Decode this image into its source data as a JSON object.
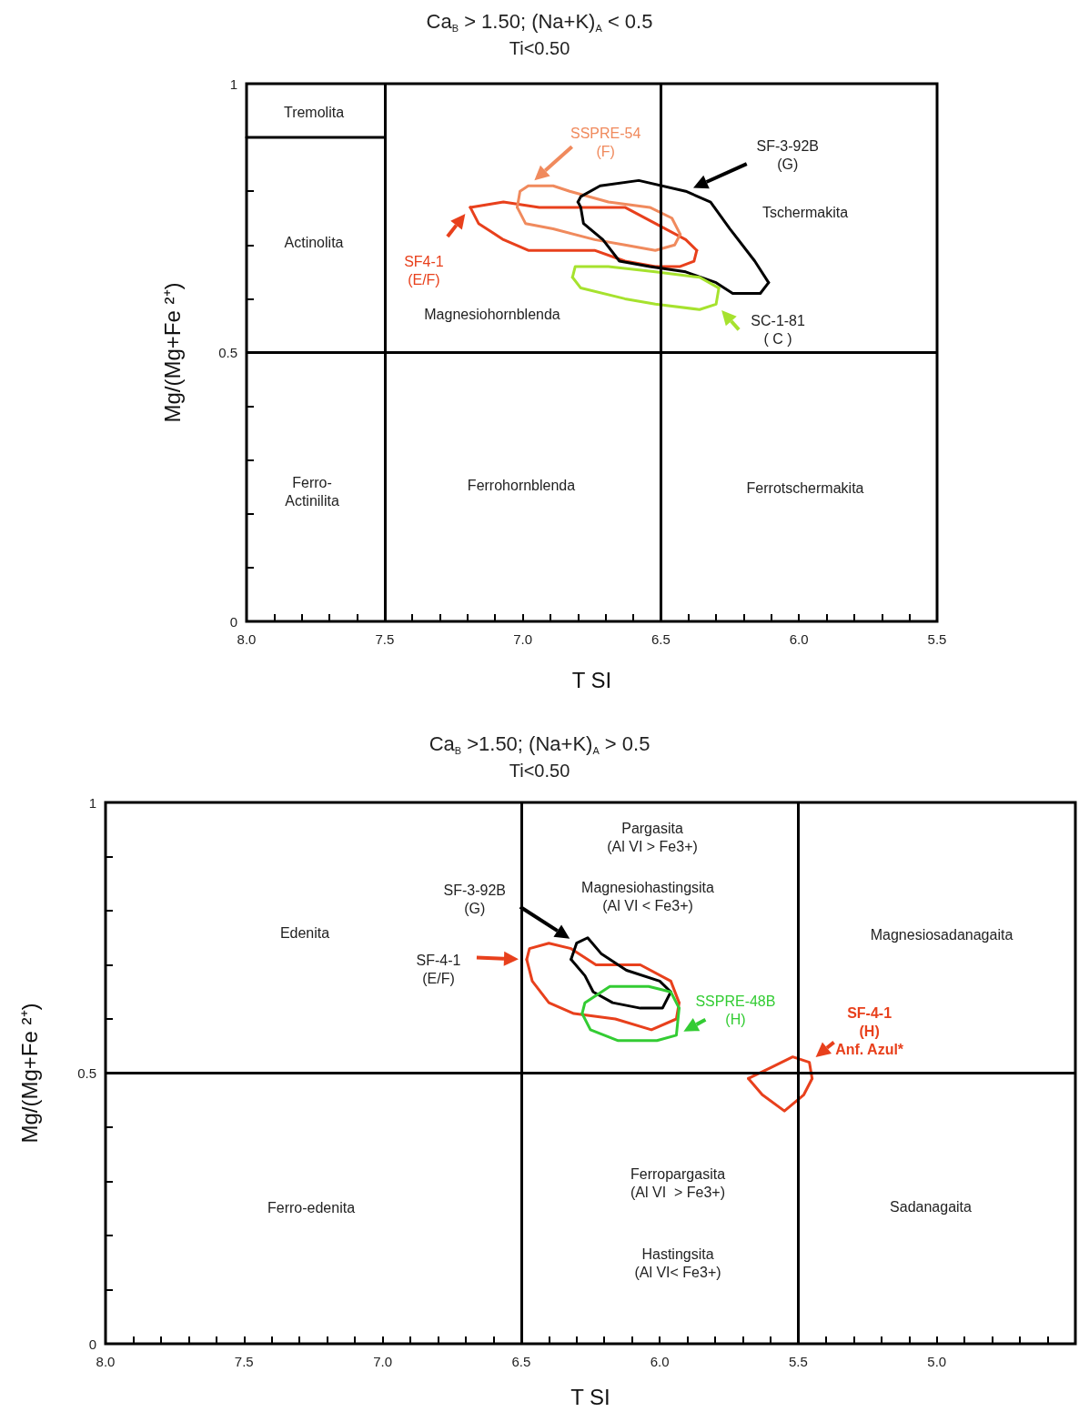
{
  "chart_data": [
    {
      "type": "line",
      "title": "Ca$_{B}$ > 1.50; (Na+K)$_{A}$ < 0.5",
      "subtitle": "Ti<0.50",
      "xlabel": "T SI",
      "ylabel": "Mg/(Mg+Fe ²⁺)",
      "marker": "none",
      "line_style": "solid",
      "grid": false,
      "xlim": [
        8.0,
        5.5
      ],
      "ylim": [
        0,
        1
      ],
      "xticks": [
        {
          "value": 8,
          "label": "8.0"
        },
        {
          "value": 7.9,
          "label": null
        },
        {
          "value": 7.8,
          "label": null
        },
        {
          "value": 7.7,
          "label": null
        },
        {
          "value": 7.6,
          "label": null
        },
        {
          "value": 7.5,
          "label": "7.5"
        },
        {
          "value": 7.4,
          "label": null
        },
        {
          "value": 7.3,
          "label": null
        },
        {
          "value": 7.2,
          "label": null
        },
        {
          "value": 7.1,
          "label": null
        },
        {
          "value": 7,
          "label": "7.0"
        },
        {
          "value": 6.9,
          "label": null
        },
        {
          "value": 6.8,
          "label": null
        },
        {
          "value": 6.7,
          "label": null
        },
        {
          "value": 6.6,
          "label": null
        },
        {
          "value": 6.5,
          "label": "6.5"
        },
        {
          "value": 6.4,
          "label": null
        },
        {
          "value": 6.3,
          "label": null
        },
        {
          "value": 6.2,
          "label": null
        },
        {
          "value": 6.1,
          "label": null
        },
        {
          "value": 6,
          "label": "6.0"
        },
        {
          "value": 5.9,
          "label": null
        },
        {
          "value": 5.8,
          "label": null
        },
        {
          "value": 5.7,
          "label": null
        },
        {
          "value": 5.6,
          "label": null
        },
        {
          "value": 5.5,
          "label": "5.5"
        }
      ],
      "yticks": [
        0,
        {
          "value": 0.1,
          "label": null
        },
        {
          "value": 0.2,
          "label": null
        },
        {
          "value": 0.3,
          "label": null
        },
        {
          "value": 0.4,
          "label": null
        },
        0.5,
        {
          "value": 0.6,
          "label": null
        },
        {
          "value": 0.7,
          "label": null
        },
        {
          "value": 0.8,
          "label": null
        },
        {
          "value": 0.9,
          "label": null
        },
        1
      ],
      "ref_lines": [
        {
          "axis": "x",
          "value": 7.5,
          "color": "#000000"
        },
        {
          "axis": "x",
          "value": 6.5,
          "color": "#000000"
        },
        {
          "axis": "y",
          "value": 0.5,
          "color": "#000000"
        }
      ],
      "series": [
        {
          "color": "#000000",
          "x": [
            8.0,
            7.5
          ],
          "values": [
            0.9,
            0.9
          ]
        },
        {
          "name": "SF4-1\n(E/F)",
          "color": "#e8401c",
          "x": [
            7.19,
            7.07,
            6.94,
            6.79,
            6.63,
            6.52,
            6.41,
            6.37
          ],
          "values": [
            0.77,
            0.78,
            0.77,
            0.77,
            0.77,
            0.74,
            0.71,
            0.69
          ]
        },
        {
          "color": "#e8401c",
          "x": [
            7.19,
            7.16,
            7.07,
            6.98,
            6.85,
            6.74,
            6.63,
            6.52,
            6.43,
            6.38,
            6.37
          ],
          "values": [
            0.77,
            0.74,
            0.71,
            0.69,
            0.69,
            0.69,
            0.67,
            0.66,
            0.66,
            0.67,
            0.69
          ]
        },
        {
          "name": "SSPRE-54\n(F)",
          "color": "#f08a5d",
          "x": [
            7.02,
            7.01,
            6.98,
            6.89,
            6.83,
            6.69,
            6.54,
            6.46,
            6.43
          ],
          "values": [
            0.77,
            0.8,
            0.81,
            0.81,
            0.8,
            0.78,
            0.77,
            0.75,
            0.72
          ]
        },
        {
          "color": "#f08a5d",
          "x": [
            7.02,
            6.99,
            6.89,
            6.74,
            6.63,
            6.52,
            6.45,
            6.43
          ],
          "values": [
            0.77,
            0.74,
            0.73,
            0.71,
            0.7,
            0.69,
            0.7,
            0.72
          ]
        },
        {
          "name": "SF-3-92B\n(G)",
          "color": "#000000",
          "x": [
            6.8,
            6.79,
            6.72,
            6.58,
            6.41,
            6.32,
            6.25,
            6.16,
            6.11
          ],
          "values": [
            0.78,
            0.79,
            0.81,
            0.82,
            0.8,
            0.78,
            0.73,
            0.67,
            0.63
          ]
        },
        {
          "color": "#000000",
          "x": [
            6.8,
            6.79,
            6.78,
            6.71,
            6.65,
            6.54,
            6.41,
            6.3,
            6.24,
            6.14,
            6.11
          ],
          "values": [
            0.78,
            0.77,
            0.74,
            0.71,
            0.67,
            0.66,
            0.65,
            0.63,
            0.61,
            0.61,
            0.63
          ]
        },
        {
          "name": "SC-1-81\n( C )",
          "color": "#a6e22e",
          "x": [
            6.82,
            6.79,
            6.63,
            6.52,
            6.36,
            6.3,
            6.29
          ],
          "values": [
            0.64,
            0.62,
            0.6,
            0.59,
            0.58,
            0.59,
            0.62
          ]
        },
        {
          "color": "#a6e22e",
          "x": [
            6.82,
            6.81,
            6.69,
            6.52,
            6.36,
            6.29
          ],
          "values": [
            0.64,
            0.66,
            0.66,
            0.65,
            0.64,
            0.62
          ]
        }
      ],
      "annotations": [
        "Tremolita",
        "Actinolita",
        "Magnesiohornblenda",
        "Tschermakita",
        "Ferro-\nActinilita",
        "Ferrohornblenda",
        "Ferrotschermakita"
      ]
    },
    {
      "type": "line",
      "title": "Ca$_{B}$ >1.50; (Na+K)$_{A}$ > 0.5",
      "subtitle": "Ti<0.50",
      "xlabel": "T SI",
      "ylabel": "Mg/(Mg+Fe ²⁺)",
      "marker": "none",
      "line_style": "solid",
      "grid": false,
      "xlim": [
        8.0,
        4.5
      ],
      "ylim": [
        0,
        1
      ],
      "xticks": [
        {
          "value": 8,
          "label": "8.0"
        },
        {
          "value": 7.9,
          "label": null
        },
        {
          "value": 7.8,
          "label": null
        },
        {
          "value": 7.7,
          "label": null
        },
        {
          "value": 7.6,
          "label": null
        },
        {
          "value": 7.5,
          "label": "7.5"
        },
        {
          "value": 7.4,
          "label": null
        },
        {
          "value": 7.3,
          "label": null
        },
        {
          "value": 7.2,
          "label": null
        },
        {
          "value": 7.1,
          "label": null
        },
        {
          "value": 7,
          "label": "7.0"
        },
        {
          "value": 6.9,
          "label": null
        },
        {
          "value": 6.8,
          "label": null
        },
        {
          "value": 6.7,
          "label": null
        },
        {
          "value": 6.6,
          "label": null
        },
        {
          "value": 6.5,
          "label": "6.5"
        },
        {
          "value": 6.4,
          "label": null
        },
        {
          "value": 6.3,
          "label": null
        },
        {
          "value": 6.2,
          "label": null
        },
        {
          "value": 6.1,
          "label": null
        },
        {
          "value": 6,
          "label": "6.0"
        },
        {
          "value": 5.9,
          "label": null
        },
        {
          "value": 5.8,
          "label": null
        },
        {
          "value": 5.7,
          "label": null
        },
        {
          "value": 5.6,
          "label": null
        },
        {
          "value": 5.5,
          "label": "5.5"
        },
        {
          "value": 5.4,
          "label": null
        },
        {
          "value": 5.3,
          "label": null
        },
        {
          "value": 5.2,
          "label": null
        },
        {
          "value": 5.1,
          "label": null
        },
        {
          "value": 5,
          "label": "5.0"
        },
        {
          "value": 4.9,
          "label": null
        },
        {
          "value": 4.8,
          "label": null
        },
        {
          "value": 4.7,
          "label": null
        },
        {
          "value": 4.6,
          "label": null
        }
      ],
      "yticks": [
        0,
        {
          "value": 0.1,
          "label": null
        },
        {
          "value": 0.2,
          "label": null
        },
        {
          "value": 0.3,
          "label": null
        },
        {
          "value": 0.4,
          "label": null
        },
        0.5,
        {
          "value": 0.6,
          "label": null
        },
        {
          "value": 0.7,
          "label": null
        },
        {
          "value": 0.8,
          "label": null
        },
        {
          "value": 0.9,
          "label": null
        },
        1
      ],
      "ref_lines": [
        {
          "axis": "x",
          "value": 6.5,
          "color": "#000000"
        },
        {
          "axis": "x",
          "value": 5.5,
          "color": "#000000"
        },
        {
          "axis": "y",
          "value": 0.5,
          "color": "#000000"
        }
      ],
      "series": [
        {
          "name": "SF-4-1\n(E/F)",
          "color": "#e8401c",
          "x": [
            6.48,
            6.47,
            6.4,
            6.32,
            6.23,
            6.07,
            5.96,
            5.93
          ],
          "values": [
            0.71,
            0.73,
            0.74,
            0.73,
            0.7,
            0.7,
            0.67,
            0.63
          ]
        },
        {
          "color": "#e8401c",
          "x": [
            6.48,
            6.46,
            6.4,
            6.31,
            6.16,
            6.03,
            5.94,
            5.93
          ],
          "values": [
            0.71,
            0.67,
            0.63,
            0.61,
            0.6,
            0.58,
            0.6,
            0.63
          ]
        },
        {
          "name": "SF-3-92B\n(G)",
          "color": "#000000",
          "x": [
            6.32,
            6.3,
            6.26,
            6.21,
            6.12,
            6.0,
            5.96
          ],
          "values": [
            0.71,
            0.74,
            0.75,
            0.72,
            0.69,
            0.67,
            0.65
          ]
        },
        {
          "color": "#000000",
          "x": [
            6.32,
            6.27,
            6.24,
            6.17,
            6.07,
            5.99,
            5.96
          ],
          "values": [
            0.71,
            0.68,
            0.65,
            0.63,
            0.62,
            0.62,
            0.65
          ]
        },
        {
          "name": "SSPRE-48B\n(H)",
          "color": "#33cc33",
          "x": [
            6.28,
            6.25,
            6.15,
            6.01,
            5.94,
            5.93
          ],
          "values": [
            0.61,
            0.58,
            0.56,
            0.56,
            0.57,
            0.62
          ]
        },
        {
          "color": "#33cc33",
          "x": [
            6.28,
            6.27,
            6.18,
            6.04,
            5.96,
            5.93
          ],
          "values": [
            0.61,
            0.63,
            0.66,
            0.66,
            0.65,
            0.62
          ]
        },
        {
          "name": "SF-4-1\n(H)\nAnf. Azul*",
          "color": "#e8401c",
          "x": [
            5.68,
            5.6,
            5.52,
            5.46,
            5.45
          ],
          "values": [
            0.49,
            0.51,
            0.53,
            0.52,
            0.49
          ]
        },
        {
          "color": "#e8401c",
          "x": [
            5.68,
            5.63,
            5.55,
            5.48,
            5.45
          ],
          "values": [
            0.49,
            0.46,
            0.43,
            0.46,
            0.49
          ]
        }
      ],
      "annotations": [
        "Edenita",
        "Pargasita\n(Al VI > Fe3+)",
        "Magnesiohastingsita\n(Al VI < Fe3+)",
        "Magnesiosadanagaita",
        "Ferro-edenita",
        "Ferropargasita\n(Al VI  > Fe3+)",
        "Hastingsita\n(Al VI< Fe3+)",
        "Sadanagaita"
      ]
    }
  ]
}
